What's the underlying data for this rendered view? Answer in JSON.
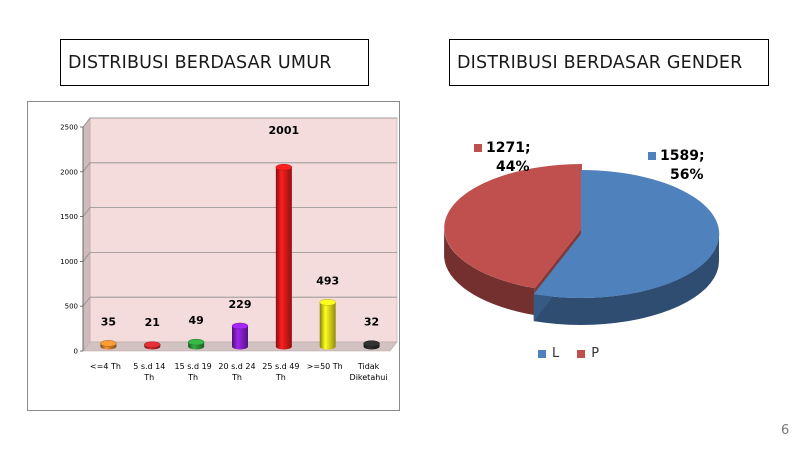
{
  "slide": {
    "page_number": "6"
  },
  "chart_data": [
    {
      "type": "bar",
      "title": "DISTRIBUSI BERDASAR UMUR",
      "categories": [
        "<=4 Th",
        "5 s.d 14 Th",
        "15 s.d 19 Th",
        "20 s.d 24 Th",
        "25 s.d 49 Th",
        ">=50 Th",
        "Tidak Diketahui"
      ],
      "category_lines": [
        [
          "<=4 Th"
        ],
        [
          "5 s.d 14",
          "Th"
        ],
        [
          "15 s.d 19",
          "Th"
        ],
        [
          "20 s.d 24",
          "Th"
        ],
        [
          "25 s.d 49",
          "Th"
        ],
        [
          ">=50 Th"
        ],
        [
          "Tidak",
          "Diketahui"
        ]
      ],
      "values": [
        35,
        21,
        49,
        229,
        2001,
        493,
        32
      ],
      "value_labels": [
        "35",
        "21",
        "49",
        "229",
        "2001",
        "493",
        "32"
      ],
      "colors": [
        "#d9822b",
        "#c0282d",
        "#2e9a3b",
        "#8a1fd0",
        "#ee1b1b",
        "#f2e81a",
        "#2a2a2a"
      ],
      "ylim": [
        0,
        2500
      ],
      "yticks": [
        0,
        500,
        1000,
        1500,
        2000,
        2500
      ],
      "grid": true,
      "wall_color": "#f4dcdc",
      "xlabel": "",
      "ylabel": ""
    },
    {
      "type": "pie",
      "title": "DISTRIBUSI BERDASAR GENDER",
      "series": [
        {
          "name": "L",
          "value": 1589,
          "percent": 56,
          "label_lines": [
            "1589;",
            "56%"
          ],
          "color": "#4f81bd"
        },
        {
          "name": "P",
          "value": 1271,
          "percent": 44,
          "label_lines": [
            "1271;",
            "44%"
          ],
          "color": "#c0504d"
        }
      ],
      "legend": "bottom"
    }
  ]
}
